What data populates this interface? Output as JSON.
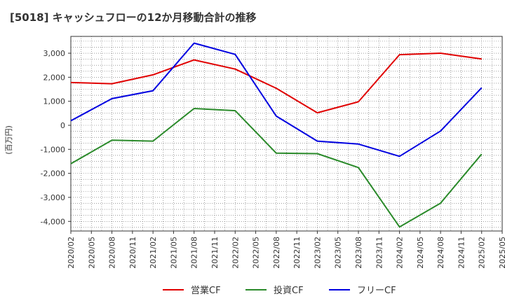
{
  "chart_data": {
    "type": "line",
    "title": "[5018]  キャッシュフローの12か月移動合計の推移",
    "xlabel": "",
    "ylabel": "(百万円)",
    "ylim": [
      -4400,
      3700
    ],
    "yticks": [
      3000,
      2000,
      1000,
      0,
      -1000,
      -2000,
      -3000,
      -4000
    ],
    "ytick_labels": [
      "3,000",
      "2,000",
      "1,000",
      "0",
      "-1,000",
      "-2,000",
      "-3,000",
      "-4,000"
    ],
    "x_ticks": [
      "2020/02",
      "2020/05",
      "2020/08",
      "2020/11",
      "2021/02",
      "2021/05",
      "2021/08",
      "2021/11",
      "2022/02",
      "2022/05",
      "2022/08",
      "2022/11",
      "2023/02",
      "2023/05",
      "2023/08",
      "2023/11",
      "2024/02",
      "2024/05",
      "2024/08",
      "2024/11",
      "2025/02",
      "2025/05"
    ],
    "grid": true,
    "legend_position": "bottom",
    "x": [
      "2020/02",
      "2020/08",
      "2021/02",
      "2021/08",
      "2022/02",
      "2022/08",
      "2023/02",
      "2023/08",
      "2024/02",
      "2024/08",
      "2025/02"
    ],
    "series": [
      {
        "name": "営業CF",
        "color": "#e00000",
        "values": [
          1780,
          1730,
          2100,
          2720,
          2340,
          1540,
          520,
          980,
          2940,
          3000,
          2760
        ]
      },
      {
        "name": "投資CF",
        "color": "#2a8a2a",
        "values": [
          -1600,
          -620,
          -660,
          700,
          610,
          -1160,
          -1180,
          -1760,
          -4230,
          -3240,
          -1200
        ]
      },
      {
        "name": "フリーCF",
        "color": "#0000e0",
        "values": [
          190,
          1110,
          1440,
          3420,
          2950,
          380,
          -660,
          -780,
          -1290,
          -240,
          1560
        ]
      }
    ]
  }
}
